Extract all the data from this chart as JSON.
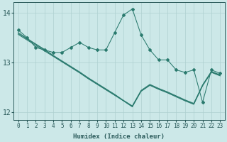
{
  "x": [
    0,
    1,
    2,
    3,
    4,
    5,
    6,
    7,
    8,
    9,
    10,
    11,
    12,
    13,
    14,
    15,
    16,
    17,
    18,
    19,
    20,
    21,
    22,
    23
  ],
  "line_main": [
    13.65,
    13.5,
    13.3,
    13.25,
    13.2,
    13.2,
    13.3,
    13.4,
    13.3,
    13.25,
    13.25,
    13.6,
    13.95,
    14.07,
    13.55,
    13.25,
    13.05,
    13.05,
    12.85,
    12.8,
    12.85,
    12.2,
    12.85,
    12.78
  ],
  "line_reg1": [
    13.6,
    13.48,
    13.37,
    13.26,
    13.14,
    13.03,
    12.92,
    12.81,
    12.69,
    12.58,
    12.47,
    12.36,
    12.24,
    12.13,
    12.44,
    12.56,
    12.48,
    12.41,
    12.33,
    12.25,
    12.18,
    12.55,
    12.82,
    12.75
  ],
  "line_reg2": [
    13.58,
    13.47,
    13.36,
    13.25,
    13.13,
    13.02,
    12.91,
    12.8,
    12.68,
    12.57,
    12.46,
    12.35,
    12.23,
    12.12,
    12.43,
    12.55,
    12.47,
    12.4,
    12.32,
    12.24,
    12.17,
    12.54,
    12.81,
    12.74
  ],
  "line_reg3": [
    13.56,
    13.45,
    13.34,
    13.23,
    13.12,
    13.01,
    12.9,
    12.79,
    12.67,
    12.56,
    12.45,
    12.34,
    12.23,
    12.11,
    12.42,
    12.54,
    12.46,
    12.39,
    12.31,
    12.23,
    12.16,
    12.53,
    12.8,
    12.73
  ],
  "ylim": [
    11.85,
    14.2
  ],
  "yticks": [
    12,
    13,
    14
  ],
  "xlim": [
    -0.5,
    23.5
  ],
  "xlabel": "Humidex (Indice chaleur)",
  "color": "#2a7a6e",
  "bg_color": "#cce8e8",
  "grid_color": "#aed0d0",
  "axis_color": "#2a5a5a",
  "tick_fontsize": 5.5,
  "label_fontsize": 6.5,
  "ytick_fontsize": 7.0
}
